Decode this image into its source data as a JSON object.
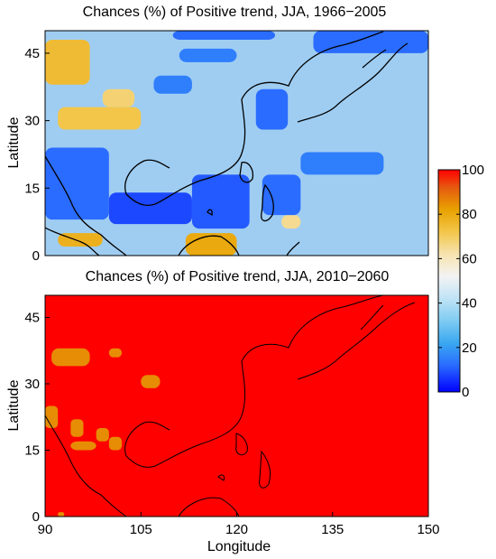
{
  "chart_data": [
    {
      "type": "heatmap",
      "title": "Chances (%) of Positive trend, JJA, 1966−2005",
      "xlabel": "",
      "ylabel": "Latitude",
      "xlim": [
        90,
        150
      ],
      "ylim": [
        0,
        50
      ],
      "xticks": [],
      "yticks": [
        0,
        15,
        30,
        45
      ],
      "grid": false,
      "cells": [
        {
          "lon": [
            90,
            97
          ],
          "lat": [
            38,
            48
          ],
          "value": 75
        },
        {
          "lon": [
            92,
            105
          ],
          "lat": [
            28,
            33
          ],
          "value": 72
        },
        {
          "lon": [
            99,
            104
          ],
          "lat": [
            33,
            37
          ],
          "value": 68
        },
        {
          "lon": [
            92,
            99
          ],
          "lat": [
            2,
            5
          ],
          "value": 78
        },
        {
          "lon": [
            112,
            120
          ],
          "lat": [
            0,
            5
          ],
          "value": 80
        },
        {
          "lon": [
            127,
            130
          ],
          "lat": [
            6,
            9
          ],
          "value": 65
        },
        {
          "lon": [
            113,
            122
          ],
          "lat": [
            6,
            18
          ],
          "value": 10
        },
        {
          "lon": [
            100,
            113
          ],
          "lat": [
            7,
            14
          ],
          "value": 8
        },
        {
          "lon": [
            124,
            130
          ],
          "lat": [
            9,
            18
          ],
          "value": 12
        },
        {
          "lon": [
            90,
            100
          ],
          "lat": [
            8,
            24
          ],
          "value": 12
        },
        {
          "lon": [
            130,
            143
          ],
          "lat": [
            18,
            23
          ],
          "value": 15
        },
        {
          "lon": [
            123,
            128
          ],
          "lat": [
            28,
            37
          ],
          "value": 12
        },
        {
          "lon": [
            107,
            113
          ],
          "lat": [
            36,
            40
          ],
          "value": 15
        },
        {
          "lon": [
            111,
            120
          ],
          "lat": [
            43,
            46
          ],
          "value": 15
        },
        {
          "lon": [
            132,
            150
          ],
          "lat": [
            45,
            50
          ],
          "value": 12
        },
        {
          "lon": [
            110,
            126
          ],
          "lat": [
            48,
            50
          ],
          "value": 12
        }
      ]
    },
    {
      "type": "heatmap",
      "title": "Chances (%) of Positive trend, JJA, 2010−2060",
      "xlabel": "Longitude",
      "ylabel": "Latitude",
      "xlim": [
        90,
        150
      ],
      "ylim": [
        0,
        50
      ],
      "xticks": [
        90,
        105,
        120,
        135,
        150
      ],
      "yticks": [
        0,
        15,
        30,
        45
      ],
      "grid": false,
      "background_value": 100,
      "cells": [
        {
          "lon": [
            91,
            97
          ],
          "lat": [
            34,
            38
          ],
          "value": 85
        },
        {
          "lon": [
            100,
            102
          ],
          "lat": [
            36,
            38
          ],
          "value": 85
        },
        {
          "lon": [
            105,
            108
          ],
          "lat": [
            29,
            32
          ],
          "value": 85
        },
        {
          "lon": [
            90,
            92
          ],
          "lat": [
            20,
            25
          ],
          "value": 85
        },
        {
          "lon": [
            94,
            96
          ],
          "lat": [
            18,
            22
          ],
          "value": 85
        },
        {
          "lon": [
            98,
            100
          ],
          "lat": [
            17,
            20
          ],
          "value": 85
        },
        {
          "lon": [
            100,
            102
          ],
          "lat": [
            15,
            18
          ],
          "value": 85
        },
        {
          "lon": [
            94,
            98
          ],
          "lat": [
            15,
            17
          ],
          "value": 85
        },
        {
          "lon": [
            92,
            93
          ],
          "lat": [
            0,
            1
          ],
          "value": 85
        }
      ]
    }
  ],
  "colorbar": {
    "range": [
      0,
      100
    ],
    "ticks": [
      "0",
      "20",
      "40",
      "60",
      "80",
      "100"
    ],
    "colormap": "jet"
  }
}
